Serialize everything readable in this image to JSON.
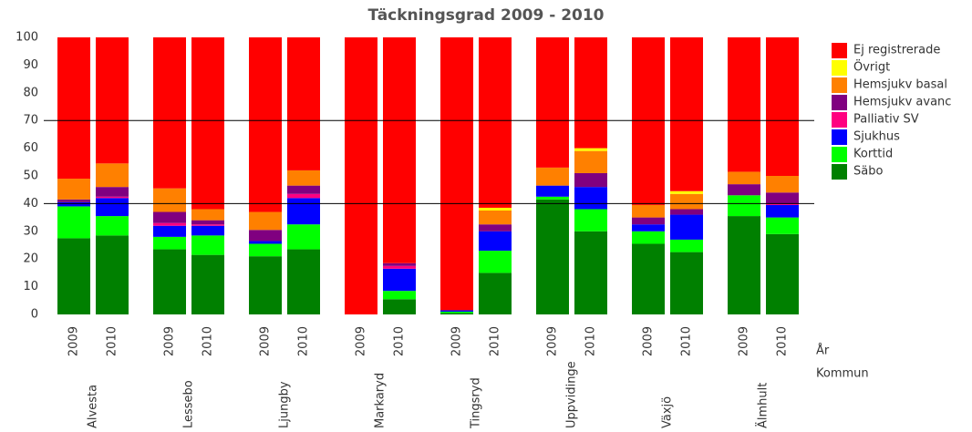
{
  "chart_data": {
    "type": "stacked_bar",
    "title": "Täckningsgrad 2009 - 2010",
    "categories": [
      "2009",
      "2010",
      "2009",
      "2010",
      "2009",
      "2010",
      "2009",
      "2010",
      "2009",
      "2010",
      "2009",
      "2010",
      "2009",
      "2010",
      "2009",
      "2010"
    ],
    "groups": [
      "Alvesta",
      "Lessebo",
      "Ljungby",
      "Markaryd",
      "Tingsryd",
      "Uppvidinge",
      "Växjö",
      "Älmhult"
    ],
    "x_axis_labels": [
      "År",
      "Kommun"
    ],
    "ylim": [
      0,
      100
    ],
    "yticks": [
      0,
      10,
      20,
      30,
      40,
      50,
      60,
      70,
      80,
      90,
      100
    ],
    "reference_lines": [
      40,
      70
    ],
    "series": [
      {
        "name": "Säbo",
        "color": "#008000",
        "values": [
          27.5,
          28.5,
          23.5,
          21.5,
          21,
          23.5,
          0,
          5.5,
          0.5,
          15,
          41.5,
          30,
          25.5,
          22.5,
          35.5,
          29
        ]
      },
      {
        "name": "Korttid",
        "color": "#00ff00",
        "values": [
          11.5,
          7,
          4.5,
          7,
          4.5,
          9,
          0,
          3,
          0.5,
          8,
          1,
          8,
          4.5,
          4.5,
          7.5,
          6
        ]
      },
      {
        "name": "Sjukhus",
        "color": "#0000ff",
        "values": [
          1.5,
          6.5,
          4,
          3.5,
          1,
          9.5,
          0,
          8,
          0.5,
          7,
          4,
          8,
          2.5,
          9,
          0,
          4.5
        ]
      },
      {
        "name": "Palliativ SV",
        "color": "#ff0080",
        "values": [
          0,
          0.5,
          1,
          0.5,
          0,
          1.5,
          0,
          1,
          0,
          0,
          0,
          0,
          0,
          0,
          0,
          0.5
        ]
      },
      {
        "name": "Hemsjukv avanc",
        "color": "#800080",
        "values": [
          1,
          3.5,
          4,
          1.5,
          4,
          3,
          0,
          1,
          0,
          2.5,
          0,
          5,
          2.5,
          2,
          4,
          4
        ]
      },
      {
        "name": "Hemsjukv basal",
        "color": "#ff8000",
        "values": [
          7.5,
          8.5,
          8.5,
          4,
          6.5,
          5.5,
          0,
          0,
          0,
          5,
          6.5,
          8,
          4.5,
          5.5,
          4.5,
          6
        ]
      },
      {
        "name": "Övrigt",
        "color": "#ffff00",
        "values": [
          0,
          0,
          0,
          0,
          0,
          0,
          0,
          0,
          0,
          1,
          0,
          1,
          0,
          1,
          0,
          0
        ]
      },
      {
        "name": "Ej registrerade",
        "color": "#ff0000",
        "values": [
          51,
          45.5,
          54.5,
          62,
          63,
          48,
          100,
          81.5,
          98.5,
          61.5,
          47,
          40,
          60.5,
          55.5,
          48.5,
          50
        ]
      }
    ]
  }
}
